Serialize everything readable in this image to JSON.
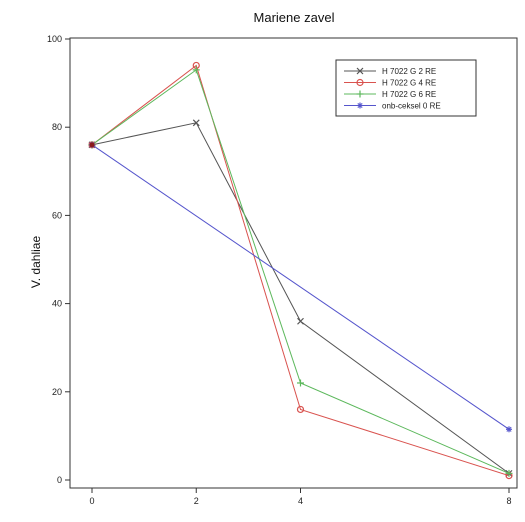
{
  "chart_data": {
    "type": "line",
    "title": "Mariene zavel",
    "xlabel": "",
    "ylabel": "V. dahliae",
    "x": [
      0,
      2,
      4,
      8
    ],
    "xlim": [
      0,
      8
    ],
    "ylim": [
      0,
      100
    ],
    "x_ticks": [
      0,
      2,
      4,
      8
    ],
    "y_ticks": [
      0,
      20,
      40,
      60,
      80,
      100
    ],
    "grid": false,
    "legend_position": "top-right",
    "series": [
      {
        "name": "H 7022 G 2 RE",
        "color": "#555555",
        "marker": "x",
        "x": [
          0,
          2,
          4,
          8
        ],
        "values": [
          76,
          81,
          36,
          1.5
        ]
      },
      {
        "name": "H 7022 G 4 RE",
        "color": "#d9534f",
        "marker": "circle",
        "x": [
          0,
          2,
          4,
          8
        ],
        "values": [
          76,
          94,
          16,
          1
        ]
      },
      {
        "name": "H 7022 G 6 RE",
        "color": "#5cb85c",
        "marker": "plus",
        "x": [
          0,
          2,
          4,
          8
        ],
        "values": [
          76,
          93,
          22,
          1.5
        ]
      },
      {
        "name": "onb-ceksel 0 RE",
        "color": "#5555cc",
        "marker": "star",
        "x": [
          0,
          8
        ],
        "values": [
          76,
          11.5
        ]
      }
    ]
  }
}
